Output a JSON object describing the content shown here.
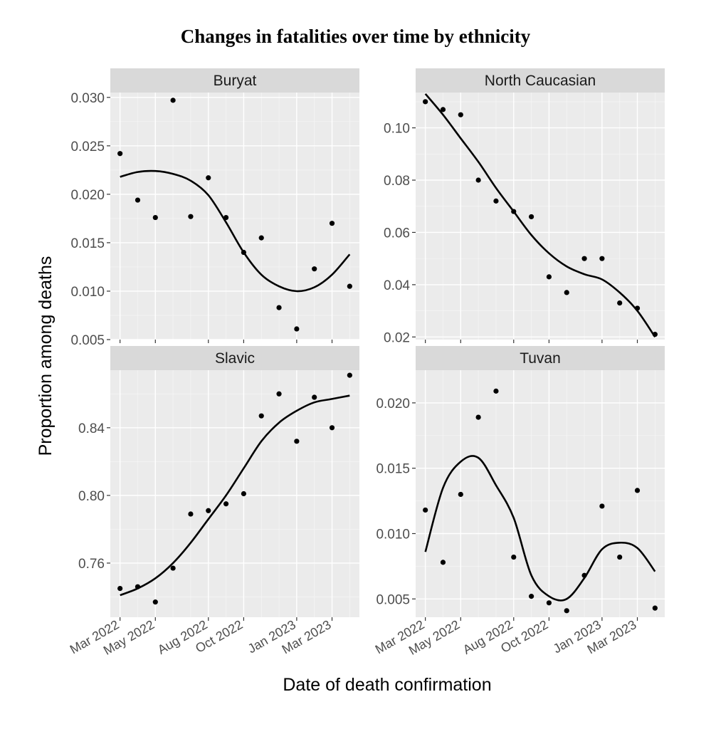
{
  "title": "Changes in fatalities over time by ethnicity",
  "chart_data": {
    "type": "scatter",
    "title": "Changes in fatalities over time by ethnicity",
    "xlabel": "Date of death confirmation",
    "ylabel": "Proportion among deaths",
    "x_tick_labels": [
      "Mar 2022",
      "May 2022",
      "Aug 2022",
      "Oct 2022",
      "Jan 2023",
      "Mar 2023"
    ],
    "x_tick_months": [
      0,
      2,
      5,
      7,
      10,
      12
    ],
    "xlim_months": [
      -0.55,
      13.55
    ],
    "x_start_month": "Mar 2022",
    "facets": [
      {
        "name": "Buryat",
        "ylim": [
          0.005,
          0.0305
        ],
        "yticks": [
          0.005,
          0.01,
          0.015,
          0.02,
          0.025,
          0.03
        ],
        "ytick_labels": [
          "0.005",
          "0.010",
          "0.015",
          "0.020",
          "0.025",
          "0.030"
        ],
        "points": [
          [
            0,
            0.0242
          ],
          [
            1,
            0.0194
          ],
          [
            2,
            0.0176
          ],
          [
            3,
            0.0297
          ],
          [
            4,
            0.0177
          ],
          [
            5,
            0.0217
          ],
          [
            6,
            0.0176
          ],
          [
            7,
            0.014
          ],
          [
            8,
            0.0155
          ],
          [
            9,
            0.0083
          ],
          [
            10,
            0.0061
          ],
          [
            11,
            0.0123
          ],
          [
            12,
            0.017
          ],
          [
            13,
            0.0105
          ]
        ],
        "smooth": [
          [
            0,
            0.0218
          ],
          [
            1,
            0.0223
          ],
          [
            2,
            0.0224
          ],
          [
            3,
            0.0221
          ],
          [
            4,
            0.0214
          ],
          [
            5,
            0.0199
          ],
          [
            6,
            0.0171
          ],
          [
            7,
            0.014
          ],
          [
            8,
            0.0117
          ],
          [
            9,
            0.0105
          ],
          [
            10,
            0.01
          ],
          [
            11,
            0.0104
          ],
          [
            12,
            0.0117
          ],
          [
            13,
            0.0138
          ]
        ]
      },
      {
        "name": "North Caucasian",
        "ylim": [
          0.019,
          0.1135
        ],
        "yticks": [
          0.02,
          0.04,
          0.06,
          0.08,
          0.1
        ],
        "ytick_labels": [
          "0.02",
          "0.04",
          "0.06",
          "0.08",
          "0.10"
        ],
        "points": [
          [
            0,
            0.11
          ],
          [
            1,
            0.107
          ],
          [
            2,
            0.105
          ],
          [
            3,
            0.08
          ],
          [
            4,
            0.072
          ],
          [
            5,
            0.068
          ],
          [
            6,
            0.066
          ],
          [
            7,
            0.043
          ],
          [
            8,
            0.037
          ],
          [
            9,
            0.05
          ],
          [
            10,
            0.05
          ],
          [
            11,
            0.033
          ],
          [
            12,
            0.031
          ],
          [
            13,
            0.021
          ]
        ],
        "smooth": [
          [
            0,
            0.113
          ],
          [
            1,
            0.105
          ],
          [
            2,
            0.096
          ],
          [
            3,
            0.087
          ],
          [
            4,
            0.077
          ],
          [
            5,
            0.068
          ],
          [
            6,
            0.059
          ],
          [
            7,
            0.052
          ],
          [
            8,
            0.047
          ],
          [
            9,
            0.044
          ],
          [
            10,
            0.042
          ],
          [
            11,
            0.037
          ],
          [
            12,
            0.03
          ],
          [
            13,
            0.02
          ]
        ]
      },
      {
        "name": "Slavic",
        "ylim": [
          0.728,
          0.874
        ],
        "yticks": [
          0.76,
          0.8,
          0.84
        ],
        "ytick_labels": [
          "0.76",
          "0.80",
          "0.84"
        ],
        "points": [
          [
            0,
            0.745
          ],
          [
            1,
            0.746
          ],
          [
            2,
            0.737
          ],
          [
            3,
            0.757
          ],
          [
            4,
            0.789
          ],
          [
            5,
            0.791
          ],
          [
            6,
            0.795
          ],
          [
            7,
            0.801
          ],
          [
            8,
            0.847
          ],
          [
            9,
            0.86
          ],
          [
            10,
            0.832
          ],
          [
            11,
            0.858
          ],
          [
            12,
            0.84
          ],
          [
            13,
            0.871
          ]
        ],
        "smooth": [
          [
            0,
            0.741
          ],
          [
            1,
            0.745
          ],
          [
            2,
            0.751
          ],
          [
            3,
            0.76
          ],
          [
            4,
            0.772
          ],
          [
            5,
            0.786
          ],
          [
            6,
            0.8
          ],
          [
            7,
            0.816
          ],
          [
            8,
            0.832
          ],
          [
            9,
            0.843
          ],
          [
            10,
            0.85
          ],
          [
            11,
            0.855
          ],
          [
            12,
            0.857
          ],
          [
            13,
            0.859
          ]
        ]
      },
      {
        "name": "Tuvan",
        "ylim": [
          0.0036,
          0.0225
        ],
        "yticks": [
          0.005,
          0.01,
          0.015,
          0.02
        ],
        "ytick_labels": [
          "0.005",
          "0.010",
          "0.015",
          "0.020"
        ],
        "points": [
          [
            0,
            0.0118
          ],
          [
            1,
            0.0078
          ],
          [
            2,
            0.013
          ],
          [
            3,
            0.0189
          ],
          [
            4,
            0.0209
          ],
          [
            5,
            0.0082
          ],
          [
            6,
            0.0052
          ],
          [
            7,
            0.0047
          ],
          [
            8,
            0.0041
          ],
          [
            9,
            0.0068
          ],
          [
            10,
            0.0121
          ],
          [
            11,
            0.0082
          ],
          [
            12,
            0.0133
          ],
          [
            13,
            0.0043
          ]
        ],
        "smooth": [
          [
            0,
            0.0086
          ],
          [
            1,
            0.0135
          ],
          [
            2,
            0.0155
          ],
          [
            3,
            0.0158
          ],
          [
            4,
            0.0137
          ],
          [
            5,
            0.0112
          ],
          [
            6,
            0.0068
          ],
          [
            7,
            0.0052
          ],
          [
            8,
            0.005
          ],
          [
            9,
            0.0066
          ],
          [
            10,
            0.0088
          ],
          [
            11,
            0.0093
          ],
          [
            12,
            0.0089
          ],
          [
            13,
            0.0071
          ]
        ]
      }
    ]
  }
}
